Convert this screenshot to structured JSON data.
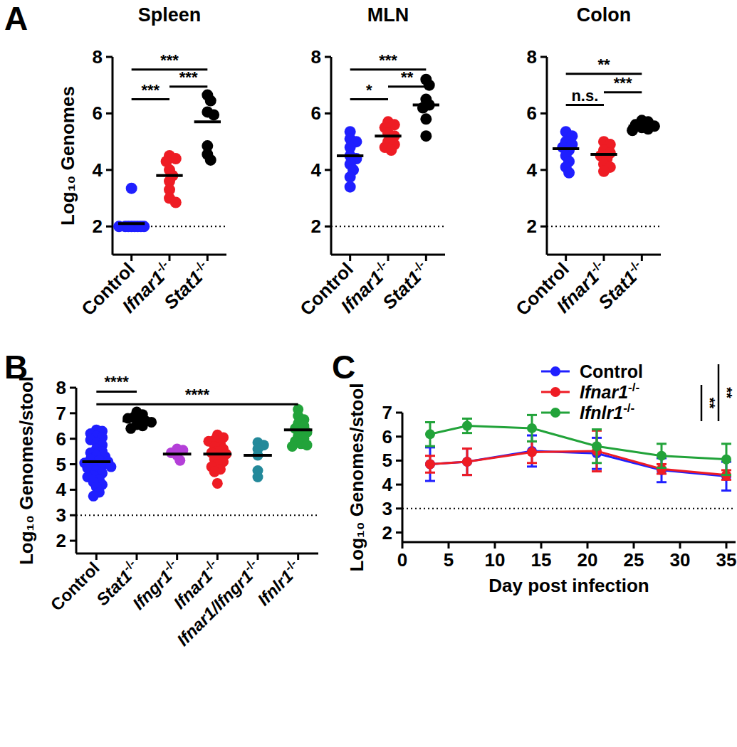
{
  "chart_data": [
    {
      "type": "scatter",
      "panel": "A",
      "title": "Spleen",
      "ylabel": "Log₁₀ Genomes",
      "categories": [
        "Control",
        "Ifnar1-/-",
        "Stat1-/-"
      ],
      "colors": [
        "#1f1fff",
        "#ee1c24",
        "#000000"
      ],
      "points": [
        [
          3.35,
          2.0,
          2.0,
          2.0,
          2.0,
          2.0,
          2.0,
          2.0,
          2.0
        ],
        [
          4.5,
          4.4,
          4.3,
          4.0,
          3.8,
          3.6,
          3.3,
          3.0,
          2.85
        ],
        [
          6.65,
          6.45,
          6.05,
          5.95,
          4.85,
          4.55,
          4.35
        ]
      ],
      "means": [
        2.1,
        3.8,
        5.7
      ],
      "limit_of_detection": 2,
      "ylim": [
        1,
        8
      ],
      "yticks": [
        2,
        4,
        6,
        8
      ],
      "annotations": [
        {
          "from": 0,
          "to": 1,
          "y": 6.5,
          "label": "***"
        },
        {
          "from": 1,
          "to": 2,
          "y": 6.95,
          "label": "***"
        },
        {
          "from": 0,
          "to": 2,
          "y": 7.55,
          "label": "***"
        }
      ]
    },
    {
      "type": "scatter",
      "title": "MLN",
      "categories": [
        "Control",
        "Ifnar1-/-",
        "Stat1-/-"
      ],
      "colors": [
        "#1f1fff",
        "#ee1c24",
        "#000000"
      ],
      "points": [
        [
          5.35,
          5.1,
          5.0,
          4.8,
          4.5,
          4.4,
          4.2,
          4.0,
          3.75,
          3.4
        ],
        [
          5.7,
          5.6,
          5.5,
          5.3,
          5.2,
          5.0,
          4.9,
          4.8,
          4.7
        ],
        [
          7.2,
          7.0,
          6.5,
          6.3,
          6.2,
          5.8,
          5.2
        ]
      ],
      "means": [
        4.5,
        5.2,
        6.3
      ],
      "limit_of_detection": 2,
      "ylim": [
        1,
        8
      ],
      "yticks": [
        2,
        4,
        6,
        8
      ],
      "annotations": [
        {
          "from": 0,
          "to": 1,
          "y": 6.5,
          "label": "*"
        },
        {
          "from": 1,
          "to": 2,
          "y": 6.95,
          "label": "**"
        },
        {
          "from": 0,
          "to": 2,
          "y": 7.55,
          "label": "***"
        }
      ]
    },
    {
      "type": "scatter",
      "title": "Colon",
      "categories": [
        "Control",
        "Ifnar1-/-",
        "Stat1-/-"
      ],
      "colors": [
        "#1f1fff",
        "#ee1c24",
        "#000000"
      ],
      "points": [
        [
          5.35,
          5.2,
          5.0,
          4.9,
          4.8,
          4.7,
          4.5,
          4.3,
          4.1,
          3.9
        ],
        [
          5.0,
          4.9,
          4.7,
          4.6,
          4.5,
          4.4,
          4.2,
          4.1,
          3.95
        ],
        [
          5.75,
          5.7,
          5.6,
          5.55,
          5.5,
          5.45,
          5.4
        ]
      ],
      "means": [
        4.75,
        4.55,
        5.55
      ],
      "limit_of_detection": 2,
      "ylim": [
        1,
        8
      ],
      "yticks": [
        2,
        4,
        6,
        8
      ],
      "annotations": [
        {
          "from": 0,
          "to": 1,
          "y": 6.3,
          "label": "n.s."
        },
        {
          "from": 1,
          "to": 2,
          "y": 6.75,
          "label": "***"
        },
        {
          "from": 0,
          "to": 2,
          "y": 7.4,
          "label": "**"
        }
      ]
    },
    {
      "type": "scatter",
      "panel": "B",
      "ylabel": "Log₁₀ Genomes/stool",
      "categories": [
        "Control",
        "Stat1-/-",
        "Ifngr1-/-",
        "Ifnar1-/-",
        "Ifnar1/Ifngr1-/-",
        "Ifnlr1-/-"
      ],
      "colors": [
        "#1f1fff",
        "#000000",
        "#b43fd8",
        "#ee1c24",
        "#23899a",
        "#22a33a"
      ],
      "points": [
        [
          6.35,
          6.3,
          6.2,
          6.1,
          6.05,
          5.95,
          5.85,
          5.75,
          5.6,
          5.5,
          5.45,
          5.35,
          5.3,
          5.2,
          5.15,
          5.1,
          5.05,
          5.0,
          4.95,
          4.9,
          4.85,
          4.75,
          4.65,
          4.55,
          4.5,
          4.4,
          4.3,
          4.2,
          4.1,
          3.9,
          3.75
        ],
        [
          7.05,
          6.95,
          6.85,
          6.8,
          6.75,
          6.7,
          6.65,
          6.55,
          6.5,
          6.4
        ],
        [
          5.6,
          5.55,
          5.45,
          5.35,
          5.15
        ],
        [
          6.15,
          6.05,
          5.95,
          5.9,
          5.8,
          5.7,
          5.6,
          5.5,
          5.45,
          5.4,
          5.3,
          5.2,
          5.1,
          5.0,
          4.9,
          4.8,
          4.7,
          4.25
        ],
        [
          5.85,
          5.75,
          5.6,
          5.35,
          4.75,
          4.5
        ],
        [
          7.15,
          6.9,
          6.75,
          6.6,
          6.5,
          6.4,
          6.3,
          6.25,
          6.1,
          6.0,
          5.9,
          5.8,
          5.75,
          5.7
        ]
      ],
      "means": [
        5.1,
        6.7,
        5.4,
        5.4,
        5.35,
        6.35
      ],
      "limit_of_detection": 3,
      "ylim": [
        1.5,
        8
      ],
      "yticks": [
        2,
        3,
        4,
        5,
        6,
        7,
        8
      ],
      "annotations": [
        {
          "from": 0,
          "to": 5,
          "y": 7.35,
          "label": "****"
        },
        {
          "from": 0,
          "to": 1,
          "y": 7.85,
          "label": "****"
        }
      ]
    },
    {
      "type": "line",
      "panel": "C",
      "ylabel": "Log₁₀ Genomes/stool",
      "xlabel": "Day post infection",
      "x": [
        3,
        7,
        14,
        21,
        28,
        35
      ],
      "series": [
        {
          "name": "Control",
          "color": "#1f1fff",
          "marker": "circle",
          "values": [
            4.85,
            4.95,
            5.4,
            5.3,
            4.6,
            4.35
          ],
          "errors": [
            0.7,
            0.55,
            0.65,
            0.65,
            0.5,
            0.6
          ]
        },
        {
          "name": "Ifnar1-/-",
          "color": "#ee1c24",
          "marker": "circle",
          "values": [
            4.85,
            4.95,
            5.35,
            5.4,
            4.65,
            4.4
          ],
          "errors": [
            0.35,
            0.55,
            0.45,
            0.85,
            0.2,
            0.2
          ]
        },
        {
          "name": "Ifnlr1-/-",
          "color": "#22a33a",
          "marker": "circle",
          "values": [
            6.1,
            6.45,
            6.35,
            5.6,
            5.2,
            5.05
          ],
          "errors": [
            0.5,
            0.3,
            0.55,
            0.7,
            0.5,
            0.65
          ]
        }
      ],
      "limit_of_detection": 3,
      "xlim": [
        0,
        36
      ],
      "xticks": [
        0,
        5,
        10,
        15,
        20,
        25,
        30,
        35
      ],
      "ylim": [
        1.6,
        7
      ],
      "yticks": [
        2,
        3,
        4,
        5,
        6,
        7
      ],
      "legend": "top right",
      "annotations": [
        {
          "label": "**",
          "series": [
            1,
            2
          ]
        },
        {
          "label": "**",
          "series": [
            0,
            2
          ]
        }
      ]
    }
  ]
}
